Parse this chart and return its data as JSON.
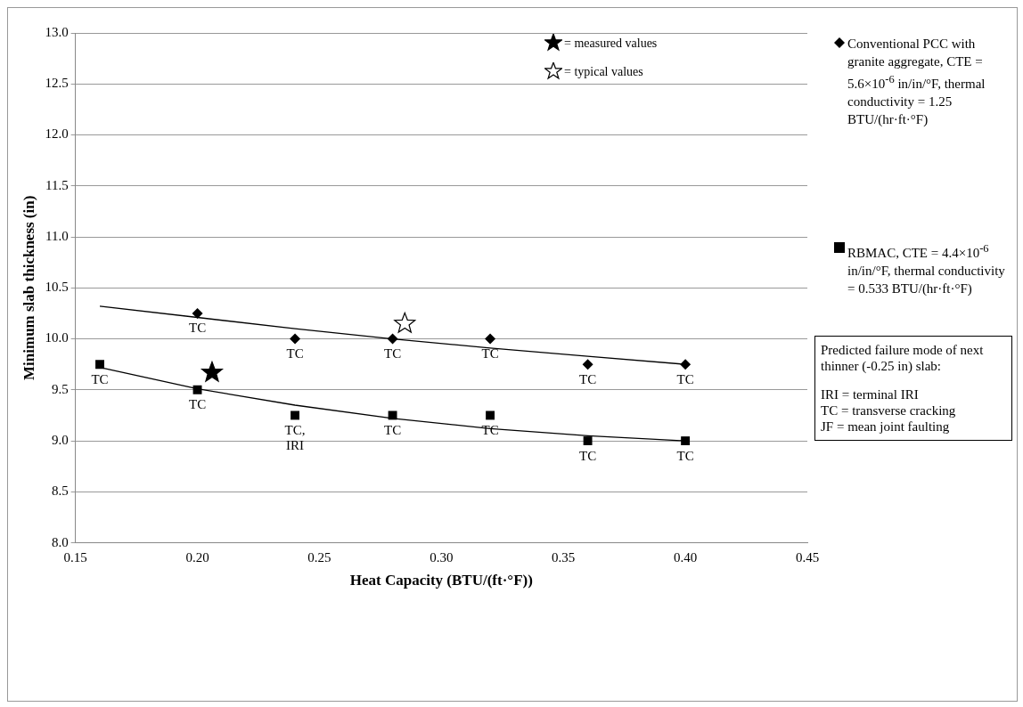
{
  "chart_data": {
    "type": "scatter",
    "xlabel": "Heat Capacity (BTU/(ft·°F))",
    "ylabel": "Minimum slab thickness (in)",
    "xlim": [
      0.15,
      0.45
    ],
    "xticks": [
      0.15,
      {
        "value": 0.2,
        "label": "0.20"
      },
      0.25,
      {
        "value": 0.3,
        "label": "0.30"
      },
      0.35,
      {
        "value": 0.4,
        "label": "0.40"
      },
      0.45
    ],
    "ylim": [
      8,
      13
    ],
    "yticks": [
      {
        "value": 8,
        "label": "8.0"
      },
      8.5,
      {
        "value": 9,
        "label": "9.0"
      },
      9.5,
      {
        "value": 10,
        "label": "10.0"
      },
      10.5,
      {
        "value": 11,
        "label": "11.0"
      },
      11.5,
      {
        "value": 12,
        "label": "12.0"
      },
      12.5,
      {
        "value": 13,
        "label": "13.0"
      }
    ],
    "grid": "y",
    "legend": "right",
    "series": [
      {
        "name": "Conventional PCC with granite aggregate, CTE = 5.6×10$^{-6}$  in/in/°F, thermal conductivity = 1.25 BTU/(hr·ft·°F)",
        "color": "#000000",
        "marker": "diamond",
        "x": [
          0.2,
          0.24,
          0.28,
          0.32,
          0.36,
          0.4
        ],
        "values": [
          10.25,
          10.0,
          10.0,
          10.0,
          9.75,
          9.75
        ],
        "value_labels": [
          "TC",
          "TC",
          "TC",
          "TC",
          "TC",
          "TC"
        ]
      },
      {
        "name": "RBMAC, CTE = 4.4×10$^{-6}$ in/in/°F, thermal conductivity = 0.533 BTU/(hr·ft·°F)",
        "color": "#000000",
        "marker": "square",
        "x": [
          0.16,
          0.2,
          0.24,
          0.28,
          0.32,
          0.36,
          0.4
        ],
        "values": [
          9.75,
          9.5,
          9.25,
          9.25,
          9.25,
          9.0,
          9.0
        ],
        "value_labels": [
          "TC",
          "TC",
          "TC, IRI",
          "TC",
          "TC",
          "TC",
          "TC"
        ]
      },
      {
        "type": "line",
        "color": "#000000",
        "marker": "none",
        "x": [
          0.16,
          0.2,
          0.24,
          0.28,
          0.32,
          0.36,
          0.4
        ],
        "values": [
          10.32,
          10.21,
          10.1,
          10.0,
          9.91,
          9.83,
          9.75
        ]
      },
      {
        "type": "line",
        "color": "#000000",
        "marker": "none",
        "x": [
          0.16,
          0.2,
          0.24,
          0.28,
          0.32,
          0.36,
          0.4
        ],
        "values": [
          9.72,
          9.51,
          9.35,
          9.22,
          9.12,
          9.05,
          9.0
        ]
      },
      {
        "name": "= measured values",
        "color": "#000000",
        "marker": "star",
        "x": [
          0.206
        ],
        "values": [
          9.67
        ]
      },
      {
        "name": "= typical values",
        "color": "#ffffff",
        "marker": "star",
        "x": [
          0.285
        ],
        "values": [
          10.15
        ]
      }
    ],
    "annotations": [
      "Predicted failure mode of next thinner (-0.25 in) slab:",
      "IRI = terminal IRI",
      "TC = transverse cracking",
      "JF = mean joint faulting"
    ]
  }
}
